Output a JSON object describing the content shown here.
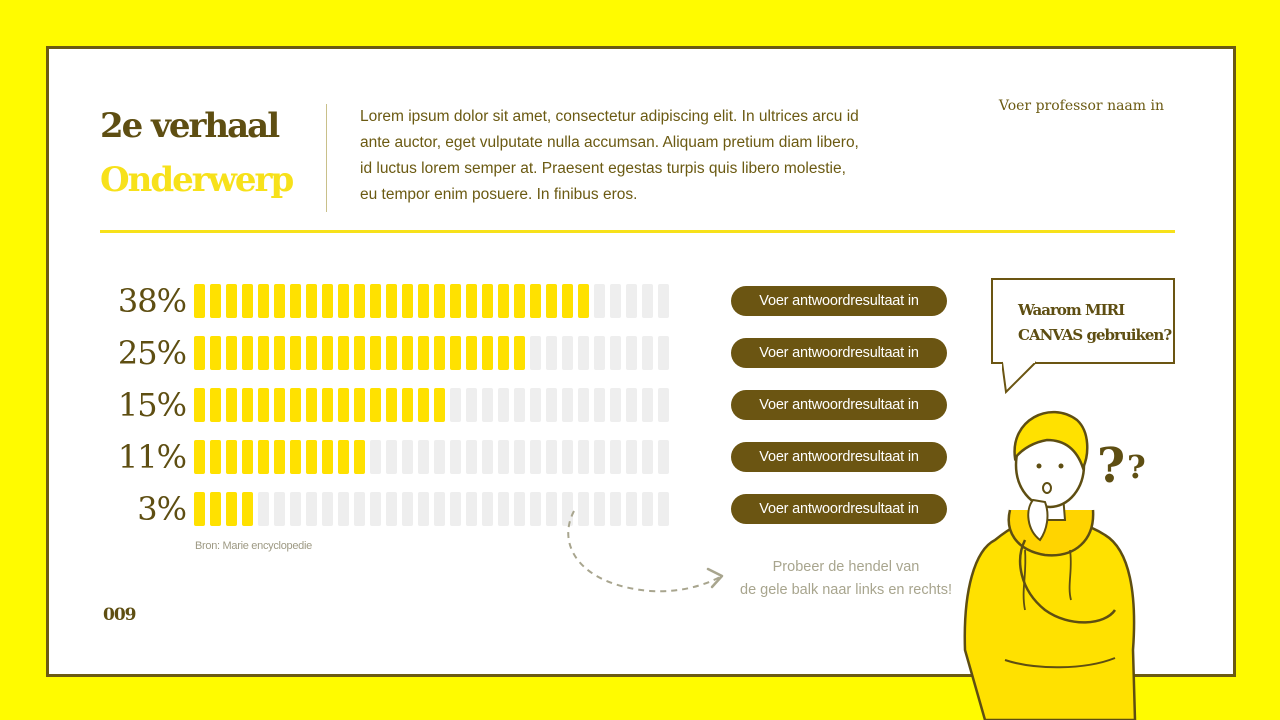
{
  "header": {
    "title_line1": "2e verhaal",
    "title_line2": "Onderwerp",
    "intro": "Lorem ipsum dolor sit amet, consectetur adipiscing elit. In ultrices arcu id ante auctor, eget vulputate nulla accumsan. Aliquam pretium diam libero, id luctus lorem semper at. Praesent egestas turpis quis libero molestie, eu tempor enim posuere. In finibus eros.",
    "professor": "Voer professor naam in"
  },
  "chart_data": {
    "type": "bar",
    "categories": [
      "38%",
      "25%",
      "15%",
      "11%",
      "3%"
    ],
    "values": [
      38,
      25,
      15,
      11,
      3
    ],
    "total_segments": 30,
    "filled_segments": [
      25,
      21,
      16,
      11,
      4
    ],
    "result_labels": [
      "Voer antwoordresultaat in",
      "Voer antwoordresultaat in",
      "Voer antwoordresultaat in",
      "Voer antwoordresultaat in",
      "Voer antwoordresultaat in"
    ]
  },
  "footer": {
    "source": "Bron: Marie encyclopedie",
    "page_number": "009",
    "hint_line1": "Probeer de hendel van",
    "hint_line2": "de gele balk naar links en rechts!"
  },
  "bubble": {
    "line1": "Waarom MIRI",
    "line2": "CANVAS gebruiken?"
  },
  "colors": {
    "background": "#FFFB00",
    "accent_yellow": "#FFE100",
    "dark_brown": "#6B5512",
    "empty_segment": "#EEEEEE"
  },
  "icons": {
    "illustration": "thinking-person-icon",
    "arrow": "dashed-curved-arrow-icon"
  }
}
